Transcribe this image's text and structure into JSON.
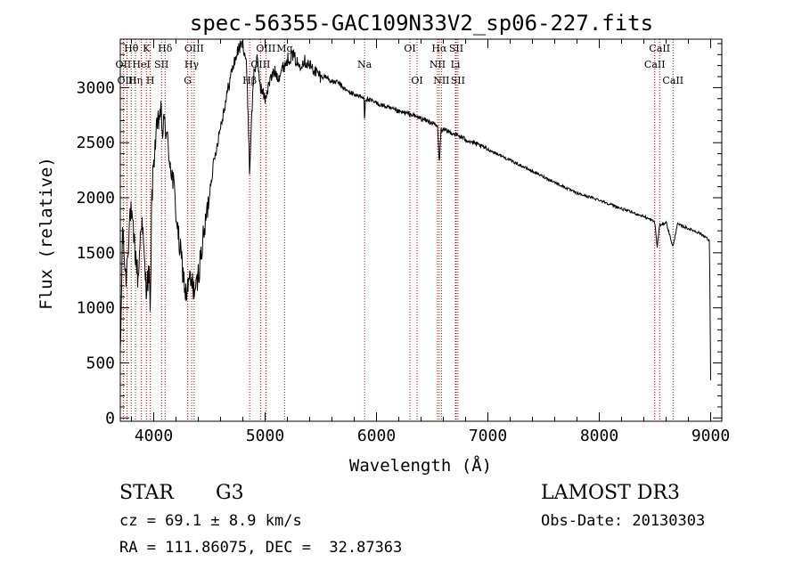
{
  "chart_data": {
    "type": "line",
    "title": "spec-56355-GAC109N33V2_sp06-227.fits",
    "xlabel": "Wavelength (Å)",
    "ylabel": "Flux (relative)",
    "xlim": [
      3700,
      9100
    ],
    "ylim": [
      -30,
      3440
    ],
    "x_ticks": [
      4000,
      5000,
      6000,
      7000,
      8000,
      9000
    ],
    "x_tick_labels": [
      "4000",
      "5000",
      "6000",
      "7000",
      "8000",
      "9000"
    ],
    "y_ticks": [
      0,
      500,
      1000,
      1500,
      2000,
      2500,
      3000
    ],
    "y_tick_labels": [
      "0",
      "500",
      "1000",
      "1500",
      "2000",
      "2500",
      "3000"
    ],
    "spectrum_anchors": {
      "x": [
        3700,
        3720,
        3750,
        3790,
        3830,
        3860,
        3890,
        3930,
        3960,
        3970,
        3980,
        4000,
        4020,
        4060,
        4080,
        4100,
        4130,
        4180,
        4220,
        4260,
        4290,
        4320,
        4350,
        4380,
        4420,
        4470,
        4520,
        4580,
        4640,
        4700,
        4760,
        4800,
        4830,
        4850,
        4861,
        4875,
        4900,
        4930,
        4960,
        5000,
        5040,
        5080,
        5120,
        5170,
        5200,
        5250,
        5300,
        5350,
        5400,
        5450,
        5500,
        5550,
        5600,
        5650,
        5700,
        5750,
        5800,
        5850,
        5890,
        5893,
        5900,
        5950,
        6000,
        6100,
        6200,
        6300,
        6400,
        6500,
        6550,
        6563,
        6580,
        6650,
        6700,
        6800,
        7000,
        7200,
        7400,
        7600,
        7800,
        8000,
        8200,
        8400,
        8498,
        8520,
        8542,
        8560,
        8600,
        8662,
        8700,
        8800,
        8900,
        8960,
        8990,
        9000
      ],
      "y": [
        500,
        1700,
        1250,
        1900,
        1550,
        1250,
        1850,
        1200,
        1300,
        850,
        1900,
        2350,
        2550,
        2800,
        2600,
        2700,
        2450,
        2100,
        1650,
        1350,
        1100,
        1250,
        1200,
        1150,
        1450,
        1800,
        2200,
        2550,
        2850,
        3150,
        3350,
        3400,
        3250,
        2700,
        2200,
        2650,
        3150,
        3250,
        3000,
        2900,
        3050,
        3150,
        3100,
        3200,
        3250,
        3300,
        3200,
        3250,
        3200,
        3150,
        3100,
        3100,
        3050,
        3050,
        3000,
        2960,
        2940,
        2920,
        2900,
        2660,
        2900,
        2880,
        2860,
        2820,
        2780,
        2760,
        2720,
        2680,
        2640,
        2300,
        2620,
        2600,
        2580,
        2530,
        2440,
        2340,
        2240,
        2140,
        2040,
        1980,
        1900,
        1830,
        1780,
        1550,
        1760,
        1750,
        1780,
        1550,
        1760,
        1720,
        1680,
        1640,
        1600,
        350
      ]
    },
    "line_markers": [
      {
        "label": "Hθ",
        "x": 3798,
        "row": 1
      },
      {
        "label": "OII",
        "x": 3727,
        "row": 2
      },
      {
        "label": "OIII",
        "x": 3760,
        "row": 3
      },
      {
        "label": "Hη",
        "x": 3836,
        "row": 3
      },
      {
        "label": "HeI",
        "x": 3889,
        "row": 2
      },
      {
        "label": "K",
        "x": 3934,
        "row": 1
      },
      {
        "label": "H",
        "x": 3969,
        "row": 3
      },
      {
        "label": "SII",
        "x": 4070,
        "row": 2
      },
      {
        "label": "Hδ",
        "x": 4102,
        "row": 1
      },
      {
        "label": "OIII",
        "x": 4363,
        "row": 1
      },
      {
        "label": "Hγ",
        "x": 4340,
        "row": 2
      },
      {
        "label": "G",
        "x": 4305,
        "row": 3
      },
      {
        "label": "Hβ",
        "x": 4861,
        "row": 3
      },
      {
        "label": "OIII",
        "x": 4959,
        "row": 2
      },
      {
        "label": "OIII",
        "x": 5007,
        "row": 1
      },
      {
        "label": "Mg",
        "x": 5175,
        "row": 0
      },
      {
        "label": "Na",
        "x": 5893,
        "row": 2
      },
      {
        "label": "OI",
        "x": 6300,
        "row": 1
      },
      {
        "label": "OI",
        "x": 6364,
        "row": 3
      },
      {
        "label": "Hα",
        "x": 6563,
        "row": 1
      },
      {
        "label": "NII",
        "x": 6548,
        "row": 2
      },
      {
        "label": "NII",
        "x": 6583,
        "row": 3
      },
      {
        "label": "SII",
        "x": 6716,
        "row": 1
      },
      {
        "label": "Li",
        "x": 6708,
        "row": 2
      },
      {
        "label": "SII",
        "x": 6731,
        "row": 3
      },
      {
        "label": "CaII",
        "x": 8498,
        "row": 2
      },
      {
        "label": "CaII",
        "x": 8542,
        "row": 1
      },
      {
        "label": "CaII",
        "x": 8662,
        "row": 3
      }
    ],
    "colors": {
      "spectrum": "#000000",
      "marker": "#b00000",
      "axes": "#000000",
      "background": "#ffffff"
    }
  },
  "footer": {
    "class_label": "STAR",
    "subclass_label": "G3",
    "survey_label": "LAMOST DR3",
    "cz_text": "cz = 69.1 ± 8.9 km/s",
    "obs_date_text": "Obs-Date: 20130303",
    "coords_text": "RA = 111.86075, DEC =  32.87363"
  }
}
